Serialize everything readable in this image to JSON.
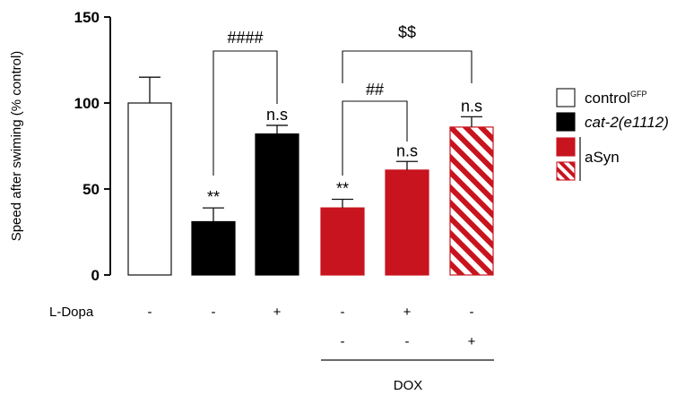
{
  "chart_data": {
    "type": "bar",
    "ylabel": "Speed after swiming (% control)",
    "ylim": [
      0,
      150
    ],
    "yticks": [
      "0",
      "50",
      "100",
      "150"
    ],
    "grid": false,
    "bars": [
      {
        "value": 100,
        "error": 15,
        "group": "controlGFP",
        "annotation": ""
      },
      {
        "value": 31,
        "error": 8,
        "group": "cat-2(e1112)",
        "annotation": "**"
      },
      {
        "value": 82,
        "error": 5,
        "group": "cat-2(e1112)",
        "annotation": "n.s"
      },
      {
        "value": 39,
        "error": 5,
        "group": "aSyn",
        "annotation": "**"
      },
      {
        "value": 61,
        "error": 5,
        "group": "aSyn",
        "annotation": "n.s"
      },
      {
        "value": 86,
        "error": 6,
        "group": "aSyn",
        "annotation": "n.s",
        "hatched": true
      }
    ],
    "comparisons": [
      {
        "from": 1,
        "to": 2,
        "label": "####"
      },
      {
        "from": 3,
        "to": 4,
        "label": "##"
      },
      {
        "from": 3,
        "to": 5,
        "label": "$$"
      }
    ],
    "conditions": [
      {
        "label": "L-Dopa",
        "values": [
          "-",
          "-",
          "+",
          "-",
          "+",
          "-"
        ]
      },
      {
        "label": "",
        "values": [
          "",
          "",
          "",
          "-",
          "-",
          "+"
        ]
      }
    ],
    "dox_label": "DOX",
    "legend": {
      "placement": "right",
      "items": [
        {
          "label": "control",
          "sup": "GFP",
          "italic": false,
          "fill": "#ffffff",
          "hatched": false
        },
        {
          "label": "cat-2(e1112)",
          "sup": "",
          "italic": true,
          "fill": "#000000",
          "hatched": false
        },
        {
          "label": "aSyn",
          "sup": "",
          "italic": false,
          "fill": "#c8141e",
          "hatched": false,
          "shared_with_next": true
        },
        {
          "label": "",
          "sup": "",
          "italic": false,
          "fill": "#c8141e",
          "hatched": true
        }
      ]
    },
    "colors": {
      "controlGFP": "#ffffff",
      "cat-2(e1112)": "#000000",
      "aSyn": "#c8141e"
    }
  }
}
